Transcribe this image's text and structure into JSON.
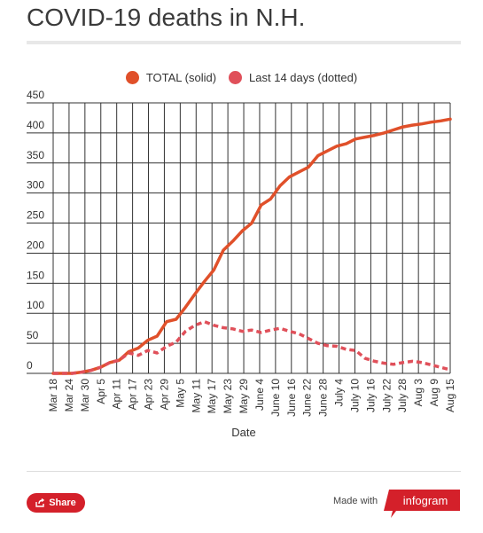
{
  "title": "COVID-19 deaths in N.H.",
  "colors": {
    "total": "#e0502a",
    "recent": "#e0505a",
    "share": "#d4202a"
  },
  "footer": {
    "share_label": "Share",
    "made_with": "Made with",
    "brand": "infogram"
  },
  "chart_data": {
    "type": "line",
    "xlabel": "Date",
    "ylabel": "",
    "ylim": [
      0,
      450
    ],
    "yticks": [
      0,
      50,
      100,
      150,
      200,
      250,
      300,
      350,
      400,
      450
    ],
    "grid": true,
    "legend_position": "top-center",
    "x_tick_labels": [
      "Mar 18",
      "Mar 24",
      "Mar 30",
      "Apr 5",
      "Apr 11",
      "Apr 17",
      "Apr 23",
      "Apr 29",
      "May 5",
      "May 11",
      "May 17",
      "May 23",
      "May 29",
      "June 4",
      "June 10",
      "June 16",
      "June 22",
      "June 28",
      "July 4",
      "July 10",
      "July 16",
      "July 22",
      "July 28",
      "Aug 3",
      "Aug 9",
      "Aug 15"
    ],
    "series": [
      {
        "name": "TOTAL (solid)",
        "style": "solid",
        "values": [
          0,
          0,
          0,
          2,
          5,
          10,
          18,
          22,
          36,
          42,
          55,
          62,
          86,
          90,
          110,
          132,
          153,
          172,
          205,
          220,
          237,
          250,
          280,
          290,
          312,
          327,
          335,
          343,
          362,
          370,
          378,
          382,
          390,
          393,
          396,
          400,
          405,
          410,
          413,
          415,
          418,
          420,
          423
        ]
      },
      {
        "name": "Last 14 days (dotted)",
        "style": "dotted",
        "values": [
          0,
          0,
          0,
          2,
          5,
          10,
          18,
          22,
          34,
          30,
          38,
          34,
          45,
          52,
          70,
          80,
          86,
          80,
          76,
          74,
          70,
          72,
          68,
          72,
          75,
          70,
          66,
          58,
          50,
          46,
          45,
          40,
          38,
          25,
          20,
          17,
          15,
          18,
          20,
          18,
          14,
          10,
          6
        ]
      }
    ]
  }
}
